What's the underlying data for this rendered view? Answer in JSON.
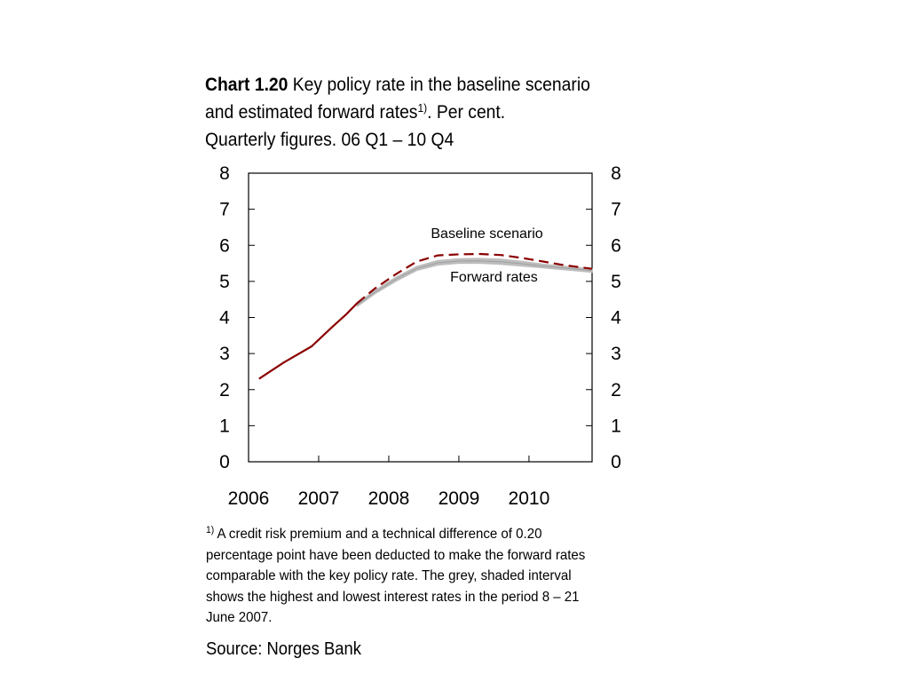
{
  "title": {
    "chart_no": "Chart 1.20",
    "text_main": " Key policy rate in the baseline scenario and estimated forward rates",
    "sup": "1)",
    "text_after": ". Per cent.",
    "line2": "Quarterly figures. 06 Q1 – 10 Q4"
  },
  "footnote": {
    "marker": "1)",
    "text": " A credit risk premium and a technical difference of 0.20 percentage point have been deducted to make the forward rates comparable with the key policy rate. The grey, shaded interval shows the highest and lowest interest rates in the period 8 – 21 June 2007."
  },
  "source": "Source: Norges Bank",
  "colors": {
    "policy_rate": "#8B0000",
    "forward": "#BDBDBD",
    "forward_line": "#A0A0A0",
    "axis": "#000000"
  },
  "chart_data": {
    "type": "line",
    "x_unit": "year (quarterly)",
    "xlim": [
      2006,
      2010.9
    ],
    "ylim": [
      0,
      8
    ],
    "yticks": [
      0,
      1,
      2,
      3,
      4,
      5,
      6,
      7,
      8
    ],
    "xtick_labels": [
      "2006",
      "2007",
      "2008",
      "2009",
      "2010"
    ],
    "grid": false,
    "annotations": [
      {
        "text": "Baseline scenario",
        "x": 2009.4,
        "y": 6.2
      },
      {
        "text": "Forward rates",
        "x": 2009.5,
        "y": 5.0
      }
    ],
    "series": [
      {
        "name": "Baseline scenario",
        "style": "solid",
        "x": [
          2006.15,
          2006.5,
          2006.9,
          2007.2,
          2007.4,
          2007.55
        ],
        "y": [
          2.3,
          2.75,
          3.2,
          3.75,
          4.1,
          4.4
        ]
      },
      {
        "name": "Baseline scenario",
        "style": "dashed",
        "x": [
          2007.55,
          2007.8,
          2008.1,
          2008.4,
          2008.7,
          2009.0,
          2009.3,
          2009.6,
          2009.9,
          2010.2,
          2010.5,
          2010.9
        ],
        "y": [
          4.4,
          4.8,
          5.2,
          5.55,
          5.72,
          5.75,
          5.76,
          5.73,
          5.65,
          5.55,
          5.45,
          5.35
        ]
      },
      {
        "name": "Forward rates",
        "style": "band",
        "x": [
          2007.55,
          2007.8,
          2008.1,
          2008.4,
          2008.7,
          2009.0,
          2009.3,
          2009.6,
          2009.9,
          2010.2,
          2010.5,
          2010.9
        ],
        "y_low": [
          4.3,
          4.65,
          5.0,
          5.3,
          5.45,
          5.5,
          5.5,
          5.47,
          5.42,
          5.37,
          5.32,
          5.25
        ],
        "y_high": [
          4.4,
          4.75,
          5.12,
          5.42,
          5.58,
          5.63,
          5.64,
          5.62,
          5.56,
          5.48,
          5.42,
          5.35
        ]
      }
    ]
  }
}
